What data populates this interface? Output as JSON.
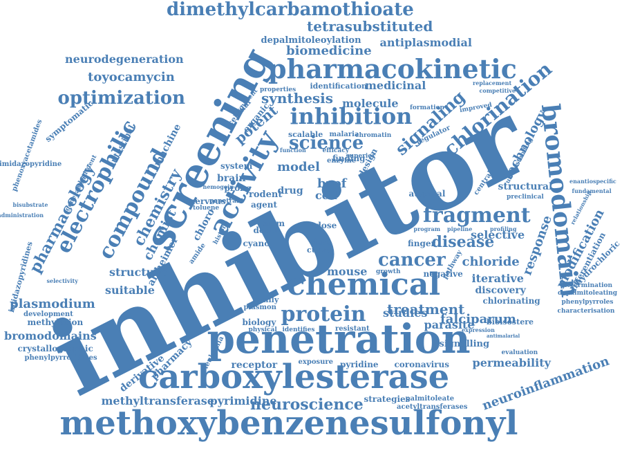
{
  "color": "#4a7fb5",
  "words": [
    "inhibitor",
    "screening",
    "penetration",
    "carboxylesterase",
    "methoxybenzenesulfonyl",
    "pharmacokinetic",
    "chemical",
    "bromodomain",
    "protein",
    "fragment",
    "activity",
    "compound",
    "electrophilic",
    "inhibition",
    "dimethylcarbamothioate",
    "chemistry",
    "science",
    "optimization",
    "signaling",
    "chlorination",
    "disease",
    "cancer",
    "pharmacology",
    "neuroscience",
    "potent",
    "synthesis",
    "treatment",
    "tetrasubstituted",
    "neurodegeneration",
    "biomedicine",
    "antiplasmodial",
    "toyocamycin",
    "depalmitoleoylation",
    "medicinal",
    "molecule",
    "technology",
    "structure",
    "chloride",
    "mouse",
    "model",
    "response",
    "modification",
    "selective",
    "iterative",
    "discovery",
    "falciparum",
    "permeability",
    "neuroinflammation",
    "methyltransferase",
    "pyrimidine",
    "plasmodium",
    "bromodomains",
    "crystallographic",
    "phenylpyrrolidines",
    "chemist",
    "studies",
    "parasite",
    "signalling",
    "derivative",
    "pharmacy",
    "leukemia",
    "receptor",
    "coronavirus",
    "strategies",
    "palmitoleate",
    "acetyltransferases",
    "suitable",
    "alzheimer",
    "methylation",
    "development",
    "administration",
    "bisubstrate",
    "imidazopyridines",
    "imidazopyridine",
    "phenoxyacetamides",
    "symptomatic",
    "intestinal",
    "machine",
    "brain",
    "drug",
    "cell",
    "brpf",
    "chloro",
    "agent",
    "dot1l",
    "cyano",
    "finger",
    "structural",
    "central",
    "enantiospecific",
    "fundamental",
    "relationship",
    "differentiation",
    "hydrochloric",
    "determination",
    "depalmitoleating",
    "phenylpyrroles",
    "characterisation",
    "bioisostere",
    "expression",
    "antimalarial",
    "evaluation",
    "chlorinating",
    "pathway",
    "negative",
    "growth",
    "exposure",
    "pyridine",
    "biology",
    "physical",
    "identifies",
    "resistant",
    "family",
    "plasmon",
    "dose",
    "system",
    "probe",
    "enzyme",
    "rodent",
    "scalable",
    "malaria",
    "chromatin",
    "regulator",
    "improved",
    "formation",
    "competitive",
    "replacement",
    "understanding",
    "preclinical",
    "profiling",
    "pipeline",
    "program",
    "atypical",
    "design",
    "finding",
    "efficacy",
    "superior",
    "nervous",
    "toluene",
    "amide",
    "selectivity",
    "generation",
    "substituent",
    "covalent",
    "properties",
    "identification",
    "organic",
    "cellular",
    "function",
    "stem",
    "vitro",
    "curve",
    "histone",
    "penetrant",
    "hemogoin"
  ]
}
